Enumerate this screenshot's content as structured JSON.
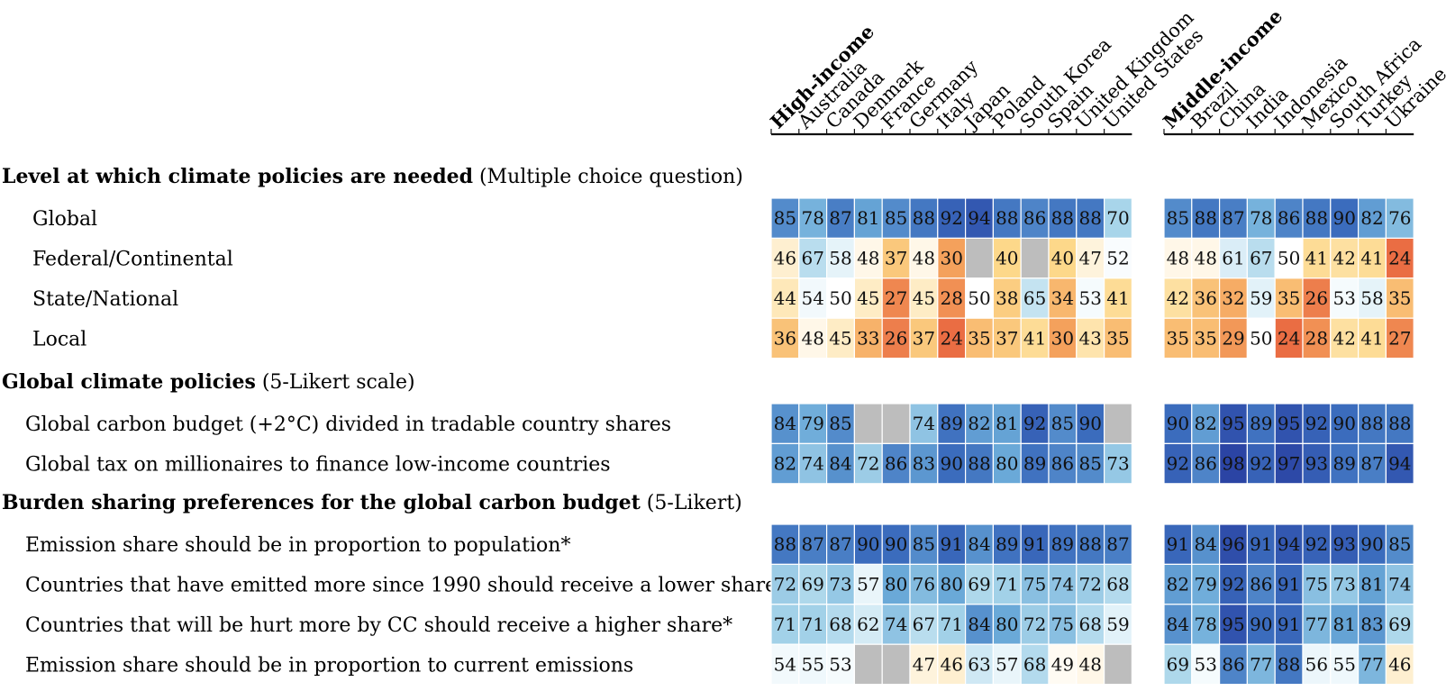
{
  "chart_data": {
    "type": "heatmap",
    "groups": [
      {
        "name": "High-income",
        "countries": [
          "Australia",
          "Canada",
          "Denmark",
          "France",
          "Germany",
          "Italy",
          "Japan",
          "Poland",
          "South Korea",
          "Spain",
          "United Kingdom",
          "United States"
        ]
      },
      {
        "name": "Middle-income",
        "countries": [
          "Brazil",
          "China",
          "India",
          "Indonesia",
          "Mexico",
          "South Africa",
          "Turkey",
          "Ukraine"
        ]
      }
    ],
    "sections": [
      {
        "title": "Level at which climate policies are needed",
        "note": "(Multiple choice question)",
        "rows": [
          {
            "label": "Global",
            "values": [
              85,
              78,
              87,
              81,
              85,
              88,
              92,
              94,
              88,
              86,
              88,
              88,
              70,
              85,
              88,
              87,
              78,
              86,
              88,
              90,
              82,
              76
            ]
          },
          {
            "label": "Federal/Continental",
            "values": [
              46,
              67,
              58,
              48,
              37,
              48,
              30,
              null,
              40,
              null,
              40,
              47,
              52,
              48,
              48,
              61,
              67,
              50,
              41,
              42,
              41,
              24
            ]
          },
          {
            "label": "State/National",
            "values": [
              44,
              54,
              50,
              45,
              27,
              45,
              28,
              50,
              38,
              65,
              34,
              53,
              41,
              42,
              36,
              32,
              59,
              35,
              26,
              53,
              58,
              35
            ]
          },
          {
            "label": "Local",
            "values": [
              36,
              48,
              45,
              33,
              26,
              37,
              24,
              35,
              37,
              41,
              30,
              43,
              35,
              35,
              35,
              29,
              50,
              24,
              28,
              42,
              41,
              27
            ]
          }
        ]
      },
      {
        "title": "Global climate policies",
        "note": "(5-Likert scale)",
        "rows": [
          {
            "label": "Global carbon budget (+2°C) divided in tradable country shares",
            "values": [
              84,
              79,
              85,
              null,
              null,
              74,
              89,
              82,
              81,
              92,
              85,
              90,
              null,
              90,
              82,
              95,
              89,
              95,
              92,
              90,
              88,
              88
            ]
          },
          {
            "label": "Global tax on millionaires to finance low-income countries",
            "values": [
              82,
              74,
              84,
              72,
              86,
              83,
              90,
              88,
              80,
              89,
              86,
              85,
              73,
              92,
              86,
              98,
              92,
              97,
              93,
              89,
              87,
              94
            ]
          }
        ]
      },
      {
        "title": "Burden sharing preferences for the global carbon budget",
        "note": "(5-Likert)",
        "rows": [
          {
            "label": "Emission share should be in proportion to population*",
            "values": [
              88,
              87,
              87,
              90,
              90,
              85,
              91,
              84,
              89,
              91,
              89,
              88,
              87,
              91,
              84,
              96,
              91,
              94,
              92,
              93,
              90,
              85
            ]
          },
          {
            "label": "Countries that have emitted more since 1990 should receive a lower share*",
            "values": [
              72,
              69,
              73,
              57,
              80,
              76,
              80,
              69,
              71,
              75,
              74,
              72,
              68,
              82,
              79,
              92,
              86,
              91,
              75,
              73,
              81,
              74
            ]
          },
          {
            "label": "Countries that will be hurt more by CC should receive a higher share*",
            "values": [
              71,
              71,
              68,
              62,
              74,
              67,
              71,
              84,
              80,
              72,
              75,
              68,
              59,
              84,
              78,
              95,
              90,
              91,
              77,
              81,
              83,
              69
            ]
          },
          {
            "label": "Emission share should be in proportion to current emissions",
            "values": [
              54,
              55,
              53,
              null,
              null,
              47,
              46,
              63,
              57,
              68,
              49,
              48,
              null,
              69,
              53,
              86,
              77,
              88,
              56,
              55,
              77,
              46
            ]
          }
        ]
      }
    ],
    "color_scale": {
      "missing": "#bdbdbd",
      "stops": [
        [
          20,
          "#e34a33"
        ],
        [
          30,
          "#f4a15c"
        ],
        [
          40,
          "#fdd88a"
        ],
        [
          50,
          "#ffffff"
        ],
        [
          60,
          "#dff0f8"
        ],
        [
          70,
          "#a8d5ea"
        ],
        [
          80,
          "#6aa9d8"
        ],
        [
          90,
          "#3b6cbd"
        ],
        [
          100,
          "#273a9e"
        ]
      ]
    }
  }
}
